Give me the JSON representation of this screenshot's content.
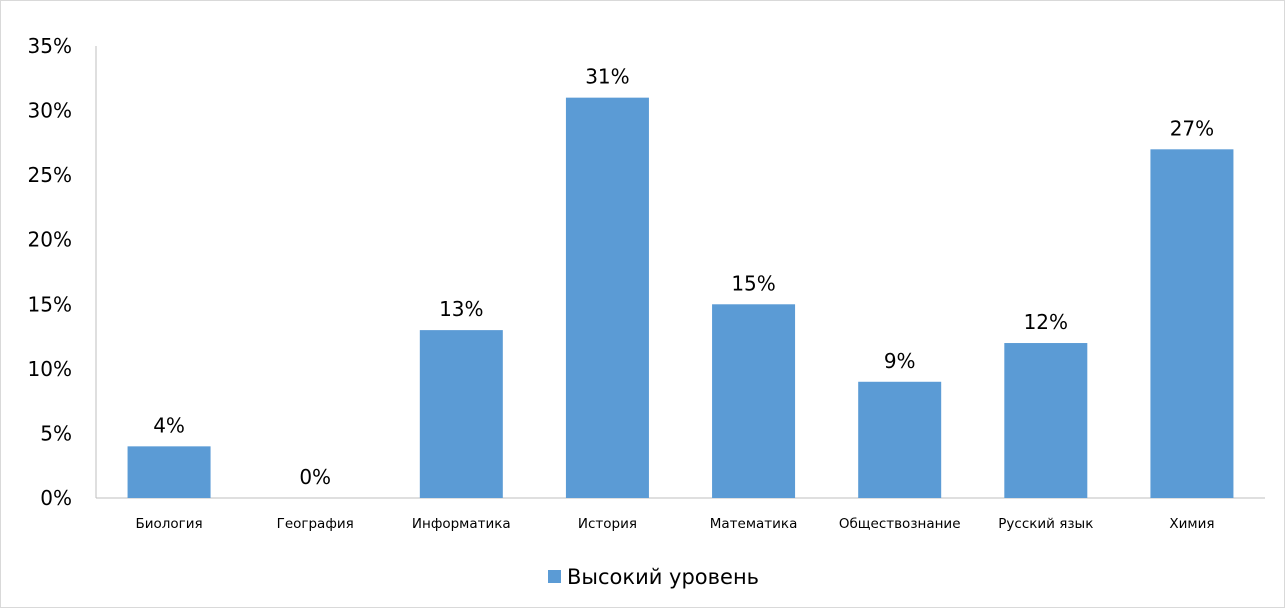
{
  "chart_data": {
    "type": "bar",
    "categories": [
      "Биология",
      "География",
      "Информатика",
      "История",
      "Математика",
      "Обществознание",
      "Русский язык",
      "Химия"
    ],
    "series": [
      {
        "name": "Высокий уровень",
        "values": [
          4,
          0,
          13,
          31,
          15,
          9,
          12,
          27
        ],
        "labels": [
          "4%",
          "0%",
          "13%",
          "31%",
          "15%",
          "9%",
          "12%",
          "27%"
        ],
        "color": "#5b9bd5"
      }
    ],
    "ylim": [
      0,
      35
    ],
    "yticks": [
      0,
      5,
      10,
      15,
      20,
      25,
      30,
      35
    ],
    "yticklabels": [
      "0%",
      "5%",
      "10%",
      "15%",
      "20%",
      "25%",
      "30%",
      "35%"
    ],
    "grid": false,
    "legend_position": "bottom"
  }
}
